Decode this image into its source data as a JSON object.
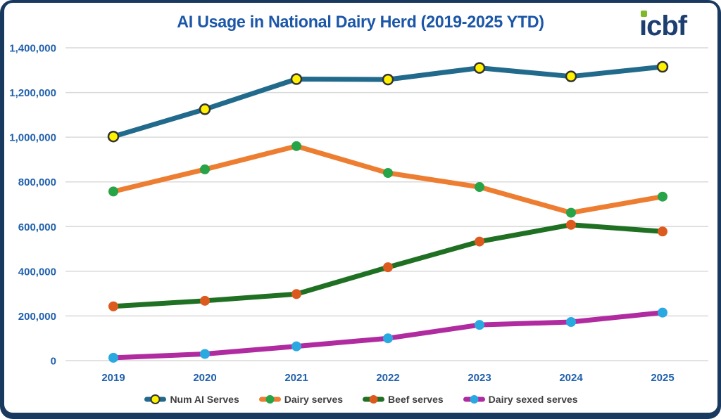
{
  "header": {
    "title": "AI Usage in National Dairy Herd (2019-2025 YTD)",
    "logo_text": "icbf"
  },
  "colors": {
    "card_border": "#19395E",
    "title_text": "#1B56A8",
    "axis_text": "#2161AC",
    "gridline": "#D9D9D9",
    "legend_text": "#3F3F3F",
    "logo_blue": "#1C3E70",
    "logo_green": "#7DB928"
  },
  "chart_data": {
    "type": "line",
    "title": "AI Usage in National Dairy Herd (2019-2025 YTD)",
    "categories": [
      "2019",
      "2020",
      "2021",
      "2022",
      "2023",
      "2024",
      "2025"
    ],
    "series": [
      {
        "name": "Num AI Serves",
        "values": [
          1003000,
          1125000,
          1260000,
          1258000,
          1310000,
          1272000,
          1315000
        ],
        "line_color": "#216A8C",
        "marker_color": "#FFF100",
        "marker_outline": "#333333"
      },
      {
        "name": "Dairy serves",
        "values": [
          757000,
          856000,
          960000,
          840000,
          777000,
          662000,
          734000
        ],
        "line_color": "#ED7D31",
        "marker_color": "#27A348",
        "marker_outline": ""
      },
      {
        "name": "Beef serves",
        "values": [
          243000,
          268000,
          298000,
          418000,
          533000,
          608000,
          578000
        ],
        "line_color": "#1F7023",
        "marker_color": "#DC5A1E",
        "marker_outline": ""
      },
      {
        "name": "Dairy sexed serves",
        "values": [
          13000,
          30000,
          64000,
          100000,
          160000,
          173000,
          215000
        ],
        "line_color": "#B02BA0",
        "marker_color": "#2AA9E0",
        "marker_outline": ""
      }
    ],
    "xlabel": "",
    "ylabel": "",
    "ylim": [
      0,
      1400000
    ],
    "yticks": [
      0,
      200000,
      400000,
      600000,
      800000,
      1000000,
      1200000,
      1400000
    ],
    "grid": "horizontal",
    "legend_position": "bottom"
  }
}
